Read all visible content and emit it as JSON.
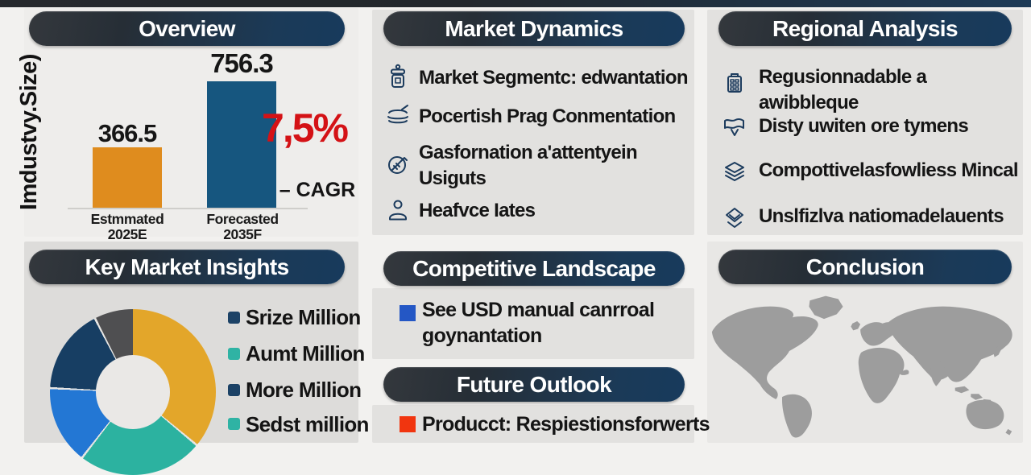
{
  "panels": {
    "overview": {
      "title": "Overview",
      "y_axis_label": "Imdustvy.Size)",
      "cagr_value": "7,5%",
      "cagr_label": "– CAGR",
      "bars": [
        {
          "value_label": "366.5",
          "cat_line1": "Estmmated",
          "cat_line2": "2025E",
          "color": "#df8c1e"
        },
        {
          "value_label": "756.3",
          "cat_line1": "Forecasted",
          "cat_line2": "2035F",
          "color": "#16567f"
        }
      ]
    },
    "market_dynamics": {
      "title": "Market Dynamics",
      "items": [
        {
          "icon": "jar-icon",
          "lines": [
            "Market Segmentc: edwantation"
          ]
        },
        {
          "icon": "stack-icon",
          "lines": [
            "Pocertish Prag Conmentation"
          ]
        },
        {
          "icon": "badge-icon",
          "lines": [
            "Gasfornation a'attentyein",
            "Usiguts"
          ]
        },
        {
          "icon": "person-icon",
          "lines": [
            "Heafvce Iates"
          ]
        }
      ]
    },
    "regional_analysis": {
      "title": "Regional Analysis",
      "items": [
        {
          "icon": "building-icon",
          "lines": [
            "Regusionnadable a",
            "awibbleque"
          ]
        },
        {
          "icon": "map-flag-icon",
          "lines": [
            "Disty uwiten ore tymens"
          ]
        },
        {
          "icon": "layers-icon",
          "lines": [
            "Compottivelasfowliess Mincal"
          ]
        },
        {
          "icon": "diamond-layers-icon",
          "lines": [
            "Unslfizlva natiomadelauents"
          ]
        }
      ]
    },
    "key_market_insights": {
      "title": "Key Market Insights",
      "legend": [
        {
          "label": "Srize Million",
          "color": "#1c4266"
        },
        {
          "label": "Aumt Million",
          "color": "#2fb3a4"
        },
        {
          "label": "More Million",
          "color": "#1c4266"
        },
        {
          "label": "Sedst million",
          "color": "#2fb3a4"
        }
      ]
    },
    "competitive_landscape": {
      "title": "Competitive Landscape",
      "item": {
        "bullet_color": "#2457c5",
        "lines": [
          "See USD manual canrroal",
          "goynantation"
        ]
      }
    },
    "future_outlook": {
      "title": "Future Outlook",
      "item": {
        "bullet_color": "#f1350f",
        "lines": [
          "Producct: Respiestionsforwerts"
        ]
      }
    },
    "conclusion": {
      "title": "Conclusion"
    }
  },
  "chart_data": [
    {
      "type": "bar",
      "title": "Overview",
      "ylabel": "Imdustvy.Size)",
      "categories": [
        "Estmmated 2025E",
        "Forecasted 2035F"
      ],
      "values": [
        366.5,
        756.3
      ],
      "colors": [
        "#df8c1e",
        "#16567f"
      ],
      "annotation": "7,5% – CAGR",
      "annotation_color": "#d41216",
      "grid": false,
      "ylim": [
        0,
        800
      ]
    },
    {
      "type": "pie",
      "title": "Key Market Insights",
      "style": "donut",
      "legend_position": "right",
      "labels": [
        "Srize Million",
        "Aumt Million",
        "More Million",
        "Sedst million"
      ],
      "segments": [
        {
          "name": "gold",
          "color": "#e3a62a",
          "start_deg": 0,
          "end_deg": 129,
          "approx_percent": 36
        },
        {
          "name": "teal",
          "color": "#2cb2a0",
          "start_deg": 130.5,
          "end_deg": 217,
          "approx_percent": 24
        },
        {
          "name": "blue",
          "color": "#2377d4",
          "start_deg": 218.5,
          "end_deg": 272,
          "approx_percent": 15
        },
        {
          "name": "navy",
          "color": "#173e63",
          "start_deg": 273.5,
          "end_deg": 332,
          "approx_percent": 16
        },
        {
          "name": "gray",
          "color": "#4f4f51",
          "start_deg": 333.5,
          "end_deg": 360,
          "approx_percent": 7
        }
      ]
    }
  ],
  "colors": {
    "page_background": "#f2f1ef",
    "card_gray": "#e2e1df",
    "header_pill_dark": "#2f353a",
    "header_pill_navy": "#1b3a58",
    "accent_red": "#d41216",
    "bar_orange": "#df8c1e",
    "bar_blue": "#16567f",
    "bullet_blue": "#2457c5",
    "bullet_red": "#f1350f",
    "map_land": "#9d9d9d",
    "icon_navy": "#1d3c5e",
    "donut_separator": "#e6e5e3"
  }
}
